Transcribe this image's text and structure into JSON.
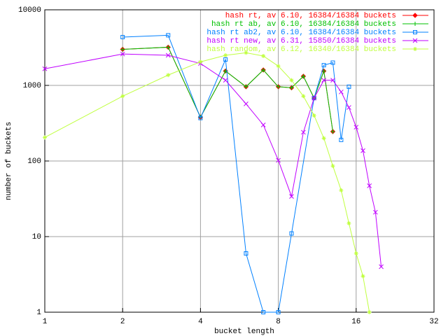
{
  "chart_data": {
    "type": "line",
    "xlabel": "bucket length",
    "ylabel": "number of buckets",
    "xlog": true,
    "ylog": true,
    "grid": true,
    "legend": "top-right",
    "xlim": [
      1,
      32
    ],
    "xticks": [
      1,
      2,
      4,
      8,
      16,
      32
    ],
    "ylim": [
      1,
      10000
    ],
    "yticks": [
      1,
      10,
      100,
      1000,
      10000
    ],
    "series": [
      {
        "name": "hash rt, av 6.10, 16384/16384 buckets",
        "color": "#ff0000",
        "marker": "diamond",
        "x": [
          2,
          3,
          4,
          5,
          6,
          7,
          8,
          9,
          10,
          11,
          12,
          13
        ],
        "values": [
          3000,
          3200,
          380,
          1550,
          960,
          1600,
          960,
          930,
          1320,
          680,
          1550,
          245
        ]
      },
      {
        "name": "hash rt ab, av 6.10, 16384/16384 buckets",
        "color": "#00c000",
        "marker": "plus",
        "x": [
          2,
          3,
          4,
          5,
          6,
          7,
          8,
          9,
          10,
          11,
          12,
          13
        ],
        "values": [
          3000,
          3200,
          380,
          1550,
          960,
          1600,
          960,
          930,
          1320,
          680,
          1550,
          245
        ]
      },
      {
        "name": "hash rt ab2, av 6.10, 16384/16384 buckets",
        "color": "#0080ff",
        "marker": "square",
        "x": [
          2,
          3,
          4,
          5,
          6,
          7,
          8,
          9,
          11,
          12,
          13,
          14,
          15
        ],
        "values": [
          4350,
          4600,
          370,
          2200,
          6,
          1,
          1,
          11,
          680,
          1850,
          2000,
          190,
          960
        ]
      },
      {
        "name": "hash rt new, av 6.31, 15850/16384 buckets",
        "color": "#c000ff",
        "marker": "cross",
        "x": [
          1,
          2,
          3,
          4,
          5,
          6,
          7,
          8,
          9,
          10,
          11,
          12,
          13,
          14,
          15,
          16,
          17,
          18,
          19,
          20
        ],
        "values": [
          1660,
          2600,
          2500,
          1950,
          1170,
          570,
          300,
          102,
          34,
          240,
          680,
          1170,
          1170,
          820,
          510,
          280,
          137,
          47,
          21,
          4
        ]
      },
      {
        "name": "hash random, av 6.12, 16340/16384 buckets",
        "color": "#c0ff40",
        "marker": "star",
        "x": [
          1,
          2,
          3,
          4,
          5,
          6,
          7,
          8,
          9,
          10,
          11,
          12,
          13,
          14,
          15,
          16,
          17,
          18
        ],
        "values": [
          205,
          720,
          1370,
          2050,
          2500,
          2700,
          2450,
          1800,
          1170,
          720,
          400,
          200,
          86,
          41,
          15,
          6,
          3,
          1
        ]
      }
    ]
  }
}
